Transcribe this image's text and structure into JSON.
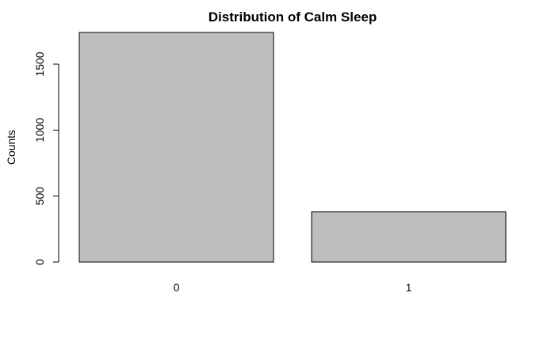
{
  "chart_data": {
    "type": "bar",
    "title": "Distribution of Calm Sleep",
    "xlabel": "",
    "ylabel": "Counts",
    "categories": [
      "0",
      "1"
    ],
    "values": [
      1740,
      380
    ],
    "ylim": [
      0,
      1740
    ],
    "yticks": [
      0,
      500,
      1000,
      1500
    ],
    "ytick_labels": [
      "0",
      "500",
      "1000",
      "1500"
    ],
    "bar_color": "#bebebe",
    "grid": false,
    "legend": "none"
  }
}
